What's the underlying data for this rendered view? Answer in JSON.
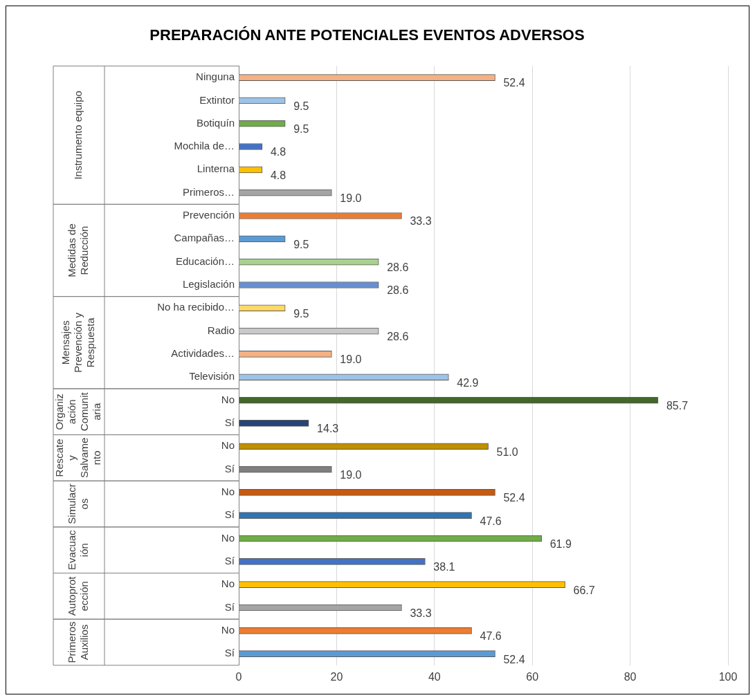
{
  "chart_data": {
    "type": "bar",
    "orientation": "horizontal",
    "title": "PREPARACIÓN ANTE POTENCIALES EVENTOS ADVERSOS",
    "categories": [
      "Ninguna",
      "Extintor",
      "Botiquín",
      "Mochila de…",
      "Linterna",
      "Primeros…",
      "Prevención",
      "Campañas…",
      "Educación…",
      "Legislación",
      "No ha recibido…",
      "Radio",
      "Actividades…",
      "Televisión",
      "No",
      "Sí",
      "No",
      "Sí",
      "No",
      "Sí",
      "No",
      "Sí",
      "No",
      "Sí",
      "No",
      "Sí"
    ],
    "values": [
      52.4,
      9.5,
      9.5,
      4.8,
      4.8,
      19.0,
      33.3,
      9.5,
      28.6,
      28.6,
      9.5,
      28.6,
      19.0,
      42.9,
      85.7,
      14.3,
      51.0,
      19.0,
      52.4,
      47.6,
      61.9,
      38.1,
      66.7,
      33.3,
      47.6,
      52.4
    ],
    "value_labels": [
      "52.4",
      "9.5",
      "9.5",
      "4.8",
      "4.8",
      "19.0",
      "33.3",
      "9.5",
      "28.6",
      "28.6",
      "9.5",
      "28.6",
      "19.0",
      "42.9",
      "85.7",
      "14.3",
      "51.0",
      "19.0",
      "52.4",
      "47.6",
      "61.9",
      "38.1",
      "66.7",
      "33.3",
      "47.6",
      "52.4"
    ],
    "colors": [
      "#f4b183",
      "#9dc3e6",
      "#70ad47",
      "#4472c4",
      "#ffc000",
      "#a5a5a5",
      "#ed7d31",
      "#5b9bd5",
      "#a9d18e",
      "#698ed0",
      "#ffd966",
      "#c9c9c9",
      "#f4b183",
      "#9dc3e6",
      "#43682b",
      "#264478",
      "#bf9000",
      "#7f7f7f",
      "#c55a11",
      "#2e75b6",
      "#70ad47",
      "#4472c4",
      "#ffc000",
      "#a5a5a5",
      "#ed7d31",
      "#5b9bd5"
    ],
    "annotations": [
      "Instrumento equipo",
      "Medidas de Reducción",
      "Mensajes Prevención y Respuesta",
      "Organización Comunitaria",
      "Rescate y Salvamento",
      "Simulacros",
      "Evacuación",
      "Autoprotección",
      "Primeros Auxilios"
    ],
    "xlim": [
      0,
      100
    ],
    "xticks": [
      0,
      20,
      40,
      60,
      80,
      100
    ],
    "grid": "x",
    "legend": false
  }
}
